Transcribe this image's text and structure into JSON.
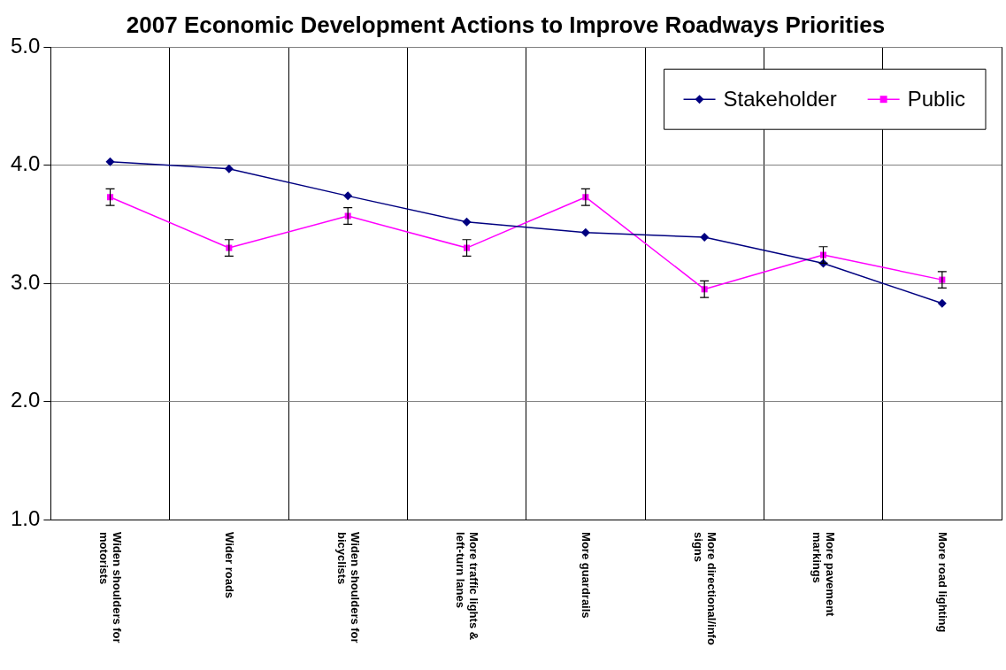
{
  "chart_data": {
    "type": "line",
    "title": "2007 Economic Development Actions to Improve Roadways Priorities",
    "categories": [
      "Widen shoulders for motorists",
      "Wider roads",
      "Widen shoulders for bicyclists",
      "More traffic lights & left-turn lanes",
      "More guardrails",
      "More directional/info signs",
      "More pavement markings",
      "More road lighting"
    ],
    "series": [
      {
        "name": "Stakeholder",
        "color": "#000080",
        "marker": "diamond",
        "values": [
          4.03,
          3.97,
          3.74,
          3.52,
          3.43,
          3.39,
          3.17,
          2.83
        ]
      },
      {
        "name": "Public",
        "color": "#ff00ff",
        "marker": "square",
        "values": [
          3.73,
          3.3,
          3.57,
          3.3,
          3.73,
          2.95,
          3.24,
          3.03
        ],
        "errors": [
          0.07,
          0.07,
          0.07,
          0.07,
          0.07,
          0.07,
          0.07,
          0.07
        ]
      }
    ],
    "ylim": [
      1,
      5
    ],
    "yticks": [
      {
        "value": 1,
        "label": "1.0"
      },
      {
        "value": 2,
        "label": "2.0"
      },
      {
        "value": 3,
        "label": "3.0"
      },
      {
        "value": 4,
        "label": "4.0"
      },
      {
        "value": 5,
        "label": "5.0"
      }
    ],
    "grid": true,
    "legend": "top right"
  }
}
